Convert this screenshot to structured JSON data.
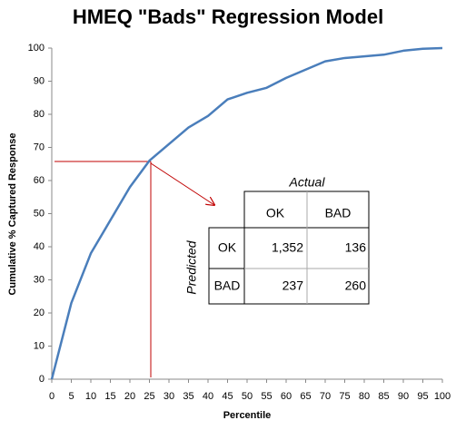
{
  "chart_data": {
    "type": "line",
    "title": "HMEQ \"Bads\" Regression Model",
    "x_label": "Percentile",
    "y_label": "Cumulative % Captured Response",
    "x": [
      0,
      5,
      10,
      15,
      20,
      25,
      30,
      35,
      40,
      45,
      50,
      55,
      60,
      65,
      70,
      75,
      80,
      85,
      90,
      95,
      100
    ],
    "series": [
      {
        "name": "Captured Response",
        "color": "#4a7ebb",
        "values": [
          0,
          23,
          38,
          48,
          58,
          66,
          71,
          76,
          79.5,
          84.5,
          86.5,
          88,
          91,
          93.5,
          96,
          97,
          97.5,
          98,
          99.2,
          99.8,
          100
        ]
      }
    ],
    "xlim": [
      0,
      100
    ],
    "xticks": [
      0,
      5,
      10,
      15,
      20,
      25,
      30,
      35,
      40,
      45,
      50,
      55,
      60,
      65,
      70,
      75,
      80,
      85,
      90,
      95,
      100
    ],
    "ylim": [
      0,
      100
    ],
    "yticks": [
      0,
      10,
      20,
      30,
      40,
      50,
      60,
      70,
      80,
      90,
      100
    ],
    "grid": false,
    "legend": false,
    "confusion_matrix": {
      "column_header": "Actual",
      "row_header": "Predicted",
      "columns": [
        "OK",
        "BAD"
      ],
      "rows": [
        {
          "label": "OK",
          "cells": [
            "1,352",
            "136"
          ]
        },
        {
          "label": "BAD",
          "cells": [
            "237",
            "260"
          ]
        }
      ]
    }
  }
}
